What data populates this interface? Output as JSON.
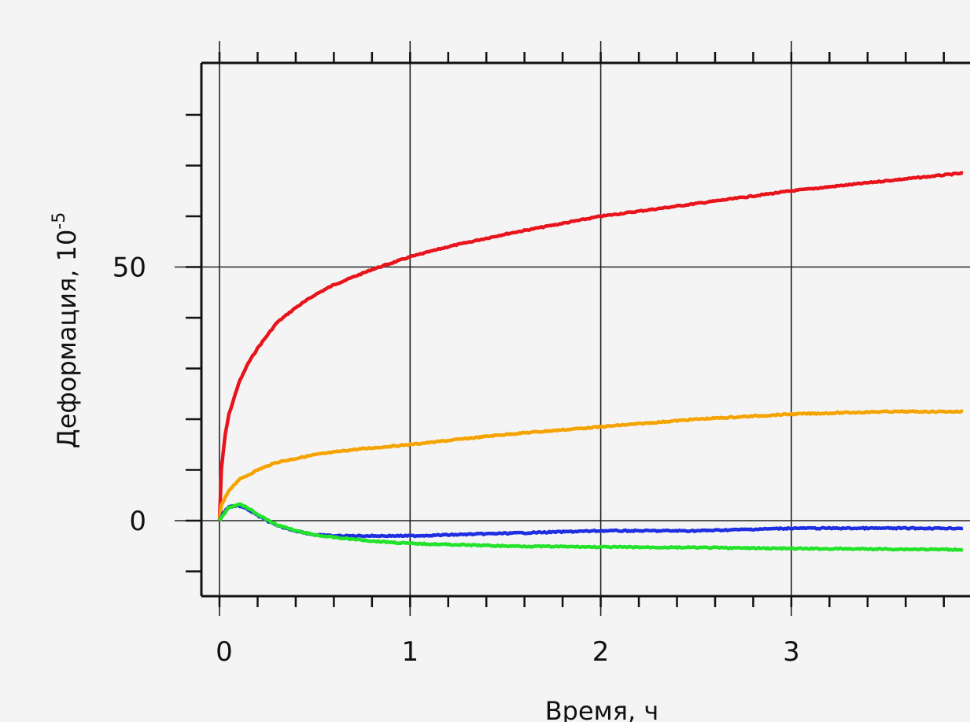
{
  "chart_data": {
    "type": "line",
    "title": "",
    "xlabel": "Время, ч",
    "ylabel": "Деформация, 10",
    "ylabel_exponent": "-5",
    "xlim": [
      -0.1,
      3.95
    ],
    "ylim": [
      -15,
      90
    ],
    "x_major_ticks": [
      0,
      1,
      2,
      3
    ],
    "x_tick_labels": [
      "0",
      "1",
      "2",
      "3"
    ],
    "y_major_ticks": [
      0,
      50
    ],
    "y_tick_labels": [
      "0",
      "50"
    ],
    "x_minor_step": 0.2,
    "y_minor_step": 10,
    "grid": true,
    "series": [
      {
        "color": "#e8141c",
        "x": [
          0,
          0.01,
          0.03,
          0.05,
          0.1,
          0.15,
          0.2,
          0.3,
          0.4,
          0.5,
          0.6,
          0.7,
          0.8,
          1.0,
          1.2,
          1.5,
          2.0,
          2.5,
          3.0,
          3.5,
          3.9
        ],
        "y": [
          0,
          10,
          17,
          21,
          27,
          31,
          34,
          39,
          42,
          44.5,
          46.5,
          48,
          49.5,
          52,
          54,
          56.5,
          60,
          62.5,
          65,
          67,
          68.5
        ]
      },
      {
        "color": "#f5a300",
        "x": [
          0,
          0.01,
          0.03,
          0.05,
          0.1,
          0.2,
          0.3,
          0.5,
          0.7,
          1.0,
          1.5,
          2.0,
          2.5,
          3.0,
          3.5,
          3.9
        ],
        "y": [
          0,
          3,
          4.5,
          6,
          8,
          10,
          11.5,
          13,
          14,
          15,
          17,
          18.5,
          20,
          21,
          21.5,
          21.5
        ]
      },
      {
        "color": "#1f2ee0",
        "x": [
          0,
          0.02,
          0.05,
          0.1,
          0.15,
          0.2,
          0.3,
          0.4,
          0.5,
          0.6,
          0.8,
          1.0,
          1.5,
          2.0,
          2.5,
          3.0,
          3.5,
          3.9
        ],
        "y": [
          0,
          1.5,
          2.8,
          3.0,
          2.2,
          1,
          -1,
          -2,
          -2.8,
          -3,
          -3,
          -3,
          -2.5,
          -2,
          -2,
          -1.5,
          -1.5,
          -1.5
        ]
      },
      {
        "color": "#22e22a",
        "x": [
          0,
          0.02,
          0.05,
          0.1,
          0.15,
          0.2,
          0.3,
          0.4,
          0.5,
          0.6,
          0.8,
          1.0,
          1.5,
          2.0,
          2.5,
          3.0,
          3.5,
          3.9
        ],
        "y": [
          0,
          1.2,
          2.5,
          3.3,
          2.5,
          1.2,
          -0.8,
          -2,
          -2.8,
          -3.3,
          -4,
          -4.5,
          -5,
          -5.2,
          -5.3,
          -5.5,
          -5.6,
          -5.7
        ]
      }
    ]
  }
}
